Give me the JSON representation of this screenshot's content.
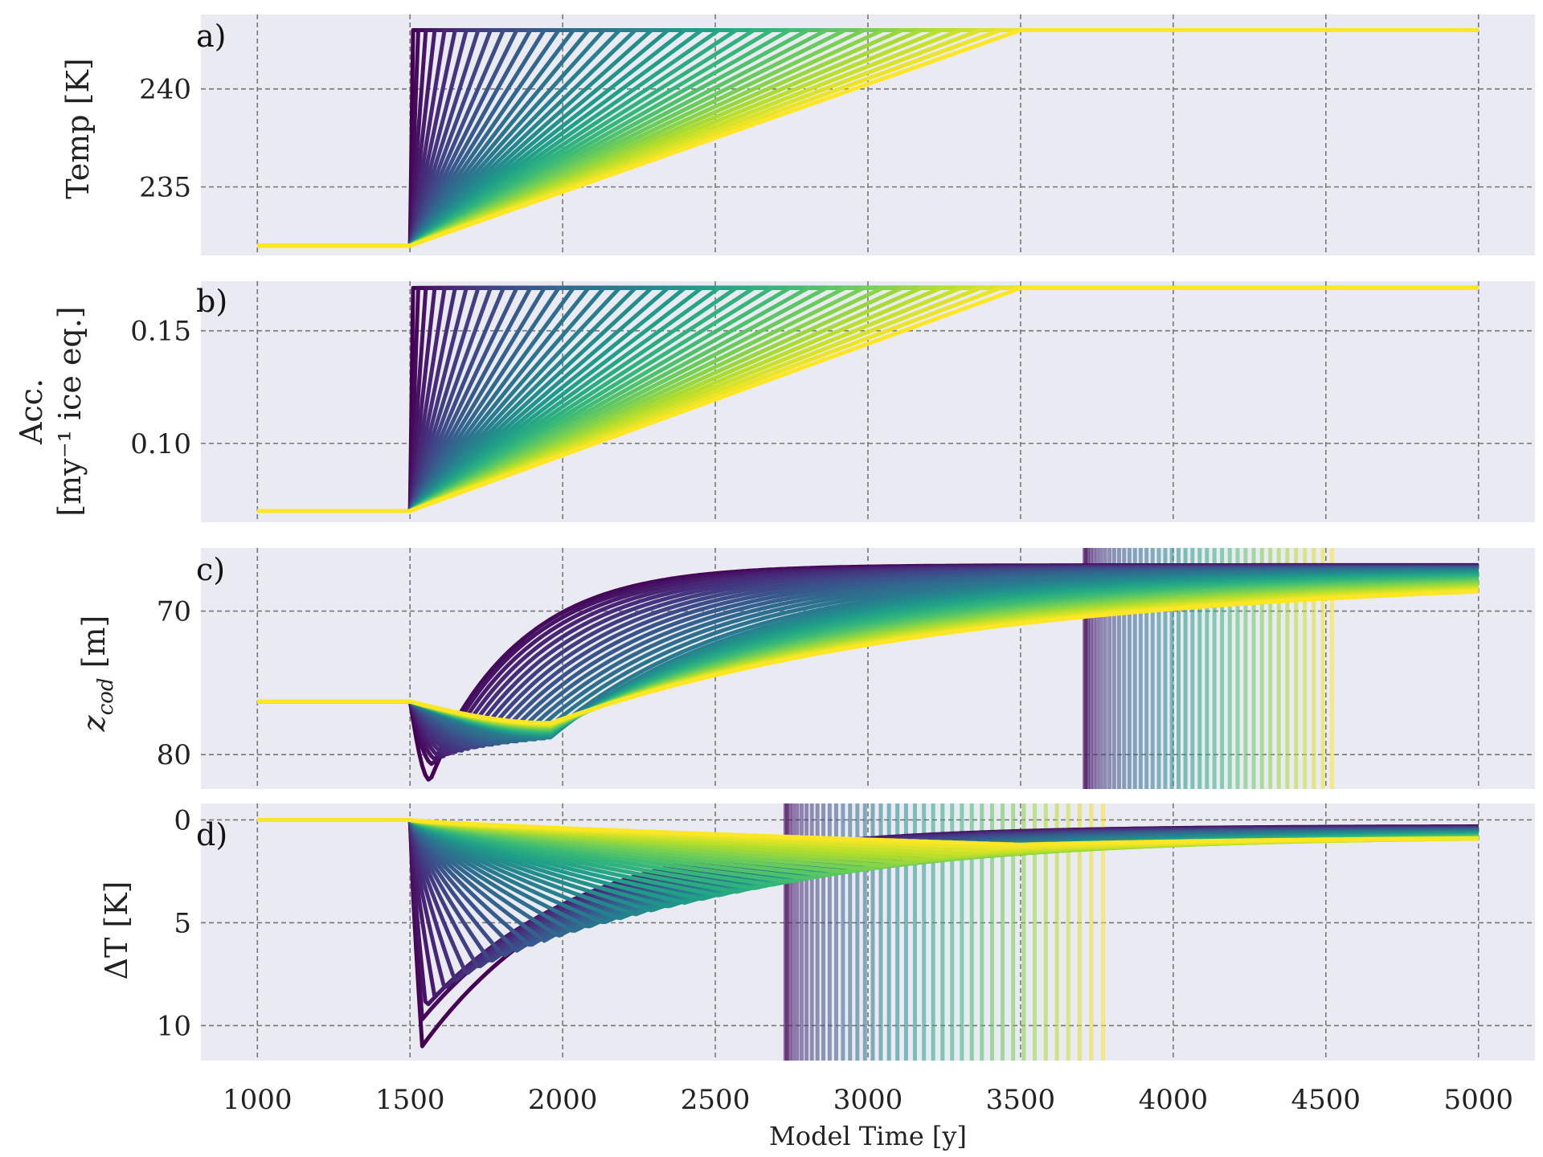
{
  "figure": {
    "xlabel": "Model Time [y]",
    "colormap": "viridis",
    "background": "#eaeaf2",
    "grid_color": "#777777"
  },
  "chart_data": [
    {
      "type": "line",
      "panel": "a)",
      "ylabel": "Temp [K]",
      "ylim": [
        231.5,
        243.8
      ],
      "yticks": [
        235,
        240
      ],
      "xlim": [
        815,
        5185
      ],
      "xticks": [
        1000,
        1500,
        2000,
        2500,
        3000,
        3500,
        4000,
        4500,
        5000
      ],
      "grid": true,
      "series_count": 40,
      "model": "ramp",
      "baseline": 232,
      "final": 243,
      "ramp_start": 1500,
      "ramp_end_range": [
        1510,
        3500
      ],
      "end_time": 5000
    },
    {
      "type": "line",
      "panel": "b)",
      "ylabel": "Acc. [my⁻¹ ice eq.]",
      "ylabel_line1": "Acc.",
      "ylabel_line2": "[my⁻¹ ice eq.]",
      "ylim": [
        0.065,
        0.172
      ],
      "yticks": [
        0.1,
        0.15
      ],
      "xlim": [
        815,
        5185
      ],
      "xticks": [
        1000,
        1500,
        2000,
        2500,
        3000,
        3500,
        4000,
        4500,
        5000
      ],
      "grid": true,
      "series_count": 40,
      "model": "ramp",
      "baseline": 0.07,
      "final": 0.169,
      "ramp_start": 1500,
      "ramp_end_range": [
        1510,
        3500
      ],
      "end_time": 5000
    },
    {
      "type": "line",
      "panel": "c)",
      "ylabel": "z_cod [m]",
      "ylim": [
        82.4,
        65.6
      ],
      "yticks": [
        70,
        80
      ],
      "y_inverted": true,
      "xlim": [
        815,
        5185
      ],
      "xticks": [
        1000,
        1500,
        2000,
        2500,
        3000,
        3500,
        4000,
        4500,
        5000
      ],
      "grid": true,
      "series_count": 40,
      "model": "zcod",
      "baseline": 76.3,
      "final_range": [
        66.8,
        67.5
      ],
      "dip_min_range": [
        81.8,
        77.8
      ],
      "vlines_range": [
        3710,
        4520
      ],
      "end_time": 5000
    },
    {
      "type": "line",
      "panel": "d)",
      "ylabel": "ΔT [K]",
      "ylim": [
        11.7,
        -0.8
      ],
      "yticks": [
        0,
        5,
        10
      ],
      "y_inverted": true,
      "xlim": [
        815,
        5185
      ],
      "xticks": [
        1000,
        1500,
        2000,
        2500,
        3000,
        3500,
        4000,
        4500,
        5000
      ],
      "grid": true,
      "series_count": 40,
      "model": "deltaT",
      "baseline": 0,
      "peak_range": [
        11.0,
        1.2
      ],
      "final_range": [
        0.3,
        0.8
      ],
      "vlines_range": [
        2730,
        3770
      ],
      "end_time": 5000
    }
  ]
}
